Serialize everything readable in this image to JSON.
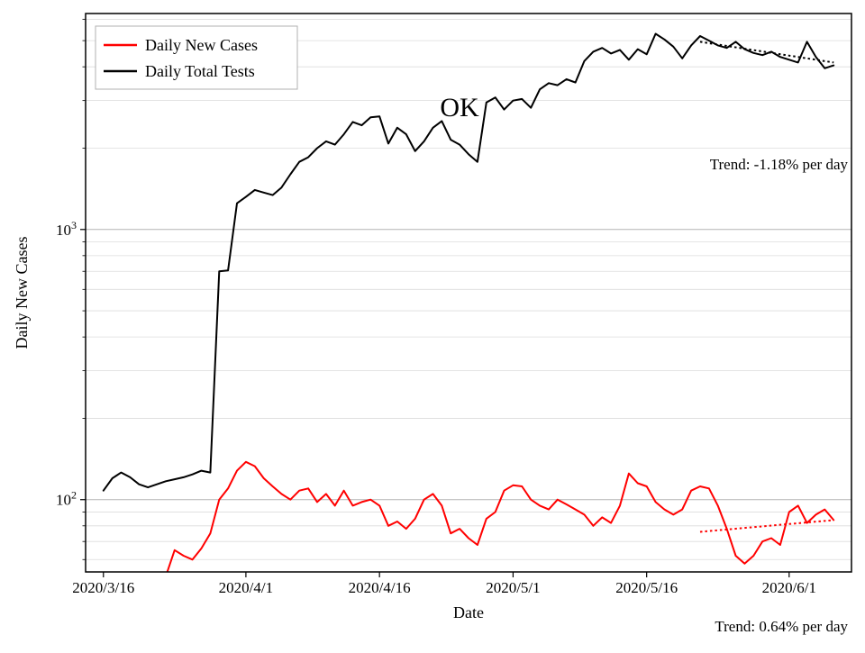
{
  "chart_data": {
    "type": "line",
    "title": "",
    "xlabel": "Date",
    "ylabel": "Daily New Cases",
    "yscale": "log",
    "ylim": [
      54,
      6300
    ],
    "xlim_days": [
      -2,
      84
    ],
    "grid": "horizontal-only",
    "legend_position": "upper-left",
    "annotation": {
      "text": "OK"
    },
    "x_tick_labels": [
      "2020/3/16",
      "2020/4/1",
      "2020/4/16",
      "2020/5/1",
      "2020/5/16",
      "2020/6/1"
    ],
    "x_tick_days": [
      0,
      16,
      31,
      46,
      61,
      77
    ],
    "y_ticks": [
      {
        "value": 100,
        "base": "10",
        "exp": "2"
      },
      {
        "value": 1000,
        "base": "10",
        "exp": "3"
      }
    ],
    "dates": [
      "2020/3/16",
      "2020/3/17",
      "2020/3/18",
      "2020/3/19",
      "2020/3/20",
      "2020/3/21",
      "2020/3/22",
      "2020/3/23",
      "2020/3/24",
      "2020/3/25",
      "2020/3/26",
      "2020/3/27",
      "2020/3/28",
      "2020/3/29",
      "2020/3/30",
      "2020/3/31",
      "2020/4/1",
      "2020/4/2",
      "2020/4/3",
      "2020/4/4",
      "2020/4/5",
      "2020/4/6",
      "2020/4/7",
      "2020/4/8",
      "2020/4/9",
      "2020/4/10",
      "2020/4/11",
      "2020/4/12",
      "2020/4/13",
      "2020/4/14",
      "2020/4/15",
      "2020/4/16",
      "2020/4/17",
      "2020/4/18",
      "2020/4/19",
      "2020/4/20",
      "2020/4/21",
      "2020/4/22",
      "2020/4/23",
      "2020/4/24",
      "2020/4/25",
      "2020/4/26",
      "2020/4/27",
      "2020/4/28",
      "2020/4/29",
      "2020/4/30",
      "2020/5/1",
      "2020/5/2",
      "2020/5/3",
      "2020/5/4",
      "2020/5/5",
      "2020/5/6",
      "2020/5/7",
      "2020/5/8",
      "2020/5/9",
      "2020/5/10",
      "2020/5/11",
      "2020/5/12",
      "2020/5/13",
      "2020/5/14",
      "2020/5/15",
      "2020/5/16",
      "2020/5/17",
      "2020/5/18",
      "2020/5/19",
      "2020/5/20",
      "2020/5/21",
      "2020/5/22",
      "2020/5/23",
      "2020/5/24",
      "2020/5/25",
      "2020/5/26",
      "2020/5/27",
      "2020/5/28",
      "2020/5/29",
      "2020/5/30",
      "2020/5/31",
      "2020/6/1",
      "2020/6/2",
      "2020/6/3",
      "2020/6/4",
      "2020/6/5",
      "2020/6/6"
    ],
    "series": [
      {
        "name": "Daily New Cases",
        "color": "#ff0000",
        "values": [
          null,
          null,
          null,
          null,
          null,
          null,
          45,
          52,
          65,
          62,
          60,
          66,
          75,
          100,
          110,
          128,
          138,
          133,
          120,
          112,
          105,
          100,
          108,
          110,
          98,
          105,
          95,
          108,
          95,
          98,
          100,
          95,
          80,
          83,
          78,
          85,
          100,
          105,
          95,
          75,
          78,
          72,
          68,
          85,
          90,
          108,
          113,
          112,
          100,
          95,
          92,
          100,
          96,
          92,
          88,
          80,
          86,
          82,
          95,
          125,
          115,
          112,
          98,
          92,
          88,
          92,
          108,
          112,
          110,
          95,
          78,
          62,
          58,
          62,
          70,
          72,
          68,
          90,
          95,
          82,
          88,
          92,
          84
        ]
      },
      {
        "name": "Daily Total Tests",
        "color": "#000000",
        "values": [
          108,
          120,
          126,
          121,
          114,
          111,
          114,
          117,
          119,
          121,
          124,
          128,
          126,
          700,
          705,
          1250,
          1320,
          1400,
          1370,
          1340,
          1430,
          1600,
          1780,
          1850,
          2000,
          2120,
          2060,
          2250,
          2500,
          2430,
          2600,
          2620,
          2080,
          2380,
          2250,
          1950,
          2120,
          2380,
          2520,
          2150,
          2060,
          1900,
          1780,
          2950,
          3080,
          2780,
          3000,
          3040,
          2820,
          3300,
          3480,
          3420,
          3600,
          3500,
          4200,
          4550,
          4700,
          4480,
          4620,
          4250,
          4650,
          4450,
          5300,
          5050,
          4750,
          4300,
          4800,
          5200,
          5000,
          4800,
          4700,
          4950,
          4650,
          4500,
          4420,
          4550,
          4350,
          4250,
          4150,
          4950,
          4350,
          3950,
          4050
        ]
      }
    ],
    "trends": [
      {
        "series": "Daily Total Tests",
        "label": "Trend: -1.18% per day",
        "rate_percent_per_day": -1.18,
        "color": "#000000",
        "start_day": 67,
        "end_day": 82,
        "start_value": 4950,
        "end_value": 4150
      },
      {
        "series": "Daily New Cases",
        "label": "Trend: 0.64% per day",
        "rate_percent_per_day": 0.64,
        "color": "#ff0000",
        "start_day": 67,
        "end_day": 82,
        "start_value": 76,
        "end_value": 84
      }
    ]
  },
  "style": {
    "major_grid_color": "#b3b3b3",
    "minor_grid_color": "#dcdcdc",
    "spine_color": "#000000"
  }
}
